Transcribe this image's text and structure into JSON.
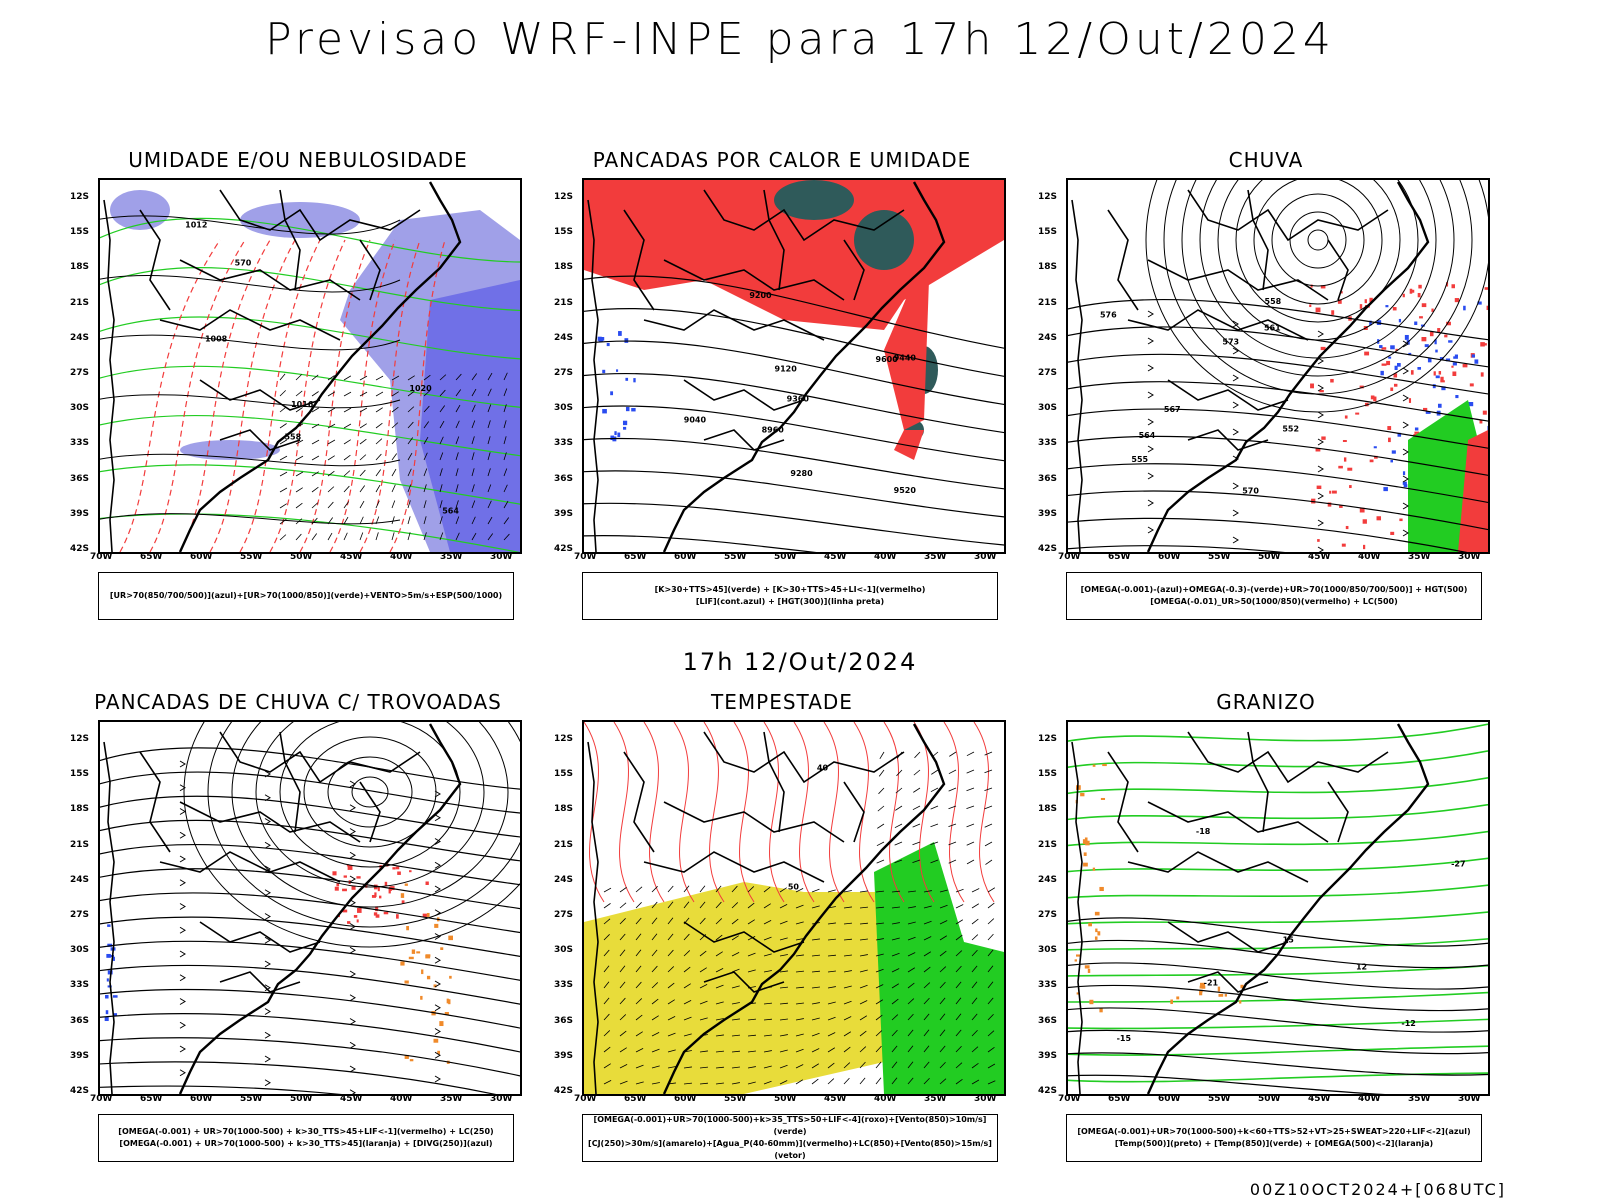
{
  "header": {
    "title": "Previsao WRF-INPE  para 17h 12/Out/2024",
    "middle_title": "17h 12/Out/2024",
    "footer": "00Z10OCT2024+[068UTC]"
  },
  "axes": {
    "lat_labels": [
      "12S",
      "15S",
      "18S",
      "21S",
      "24S",
      "27S",
      "30S",
      "33S",
      "36S",
      "39S",
      "42S"
    ],
    "lon_labels": [
      "70W",
      "65W",
      "60W",
      "55W",
      "50W",
      "45W",
      "40W",
      "35W",
      "30W"
    ]
  },
  "colors": {
    "humidity_blue": "#a0a0e8",
    "humidity_deep_blue": "#6464e6",
    "green": "#22cc22",
    "red": "#f23c3c",
    "dark_teal": "#2f5a5a",
    "orange": "#f08a2a",
    "yellow": "#e8dc3a",
    "blue": "#2a4cf0"
  },
  "panels": [
    {
      "title": "UMIDADE E/OU NEBULOSIDADE",
      "legend": [
        "[UR>70(850/700/500)](azul)+[UR>70(1000/850)](verde)+VENTO>5m/s+ESP(500/1000)"
      ],
      "contour_labels": [
        "1016",
        "1008",
        "1012",
        "1020",
        "564",
        "570",
        "558"
      ]
    },
    {
      "title": "PANCADAS POR CALOR E UMIDADE",
      "legend": [
        "[K>30+TTS>45](verde) + [K>30+TTS>45+LI<-1](vermelho)",
        "[LIF](cont.azul) + [HGT(300)](linha preta)"
      ],
      "contour_labels": [
        "9600",
        "9520",
        "9440",
        "9360",
        "9280",
        "9200",
        "9120",
        "9040",
        "8960"
      ]
    },
    {
      "title": "CHUVA",
      "legend": [
        "[OMEGA(-0.001)-(azul)+OMEGA(-0.3)-(verde)+UR>70(1000/850/700/500)] + HGT(500)",
        "[OMEGA(-0.01)_UR>50(1000/850)(vermelho) + LC(500)"
      ],
      "contour_labels": [
        "576",
        "573",
        "570",
        "567",
        "564",
        "561",
        "558",
        "555",
        "552"
      ]
    },
    {
      "title": "PANCADAS DE CHUVA C/ TROVOADAS",
      "legend": [
        "[OMEGA(-0.001) + UR>70(1000-500) + k>30_TTS>45+LIF<-1](vermelho) + LC(250)",
        "[OMEGA(-0.001) + UR>70(1000-500) + k>30_TTS>45](laranja) + [DIVG(250)](azul)"
      ],
      "contour_labels": []
    },
    {
      "title": "TEMPESTADE",
      "legend": [
        "[OMEGA(-0.001)+UR>70(1000-500)+k>35_TTS>50+LIF<-4](roxo)+[Vento(850)>10m/s](verde)",
        "[CJ(250)>30m/s](amarelo)+[Agua_P(40-60mm)](vermelho)+LC(850)+[Vento(850)>15m/s](vetor)"
      ],
      "contour_labels": [
        "40",
        "50"
      ]
    },
    {
      "title": "GRANIZO",
      "legend": [
        "[OMEGA(-0.001)+UR>70(1000-500)+k<60+TTS>52+VT>25+SWEAT>220+LIF<-2](azul)",
        "[Temp(500)](preto) + [Temp(850)](verde) + [OMEGA(500)<-2](laranja)"
      ],
      "contour_labels": [
        "-12",
        "-15",
        "-18",
        "-21",
        "-27",
        "12",
        "15"
      ]
    }
  ]
}
